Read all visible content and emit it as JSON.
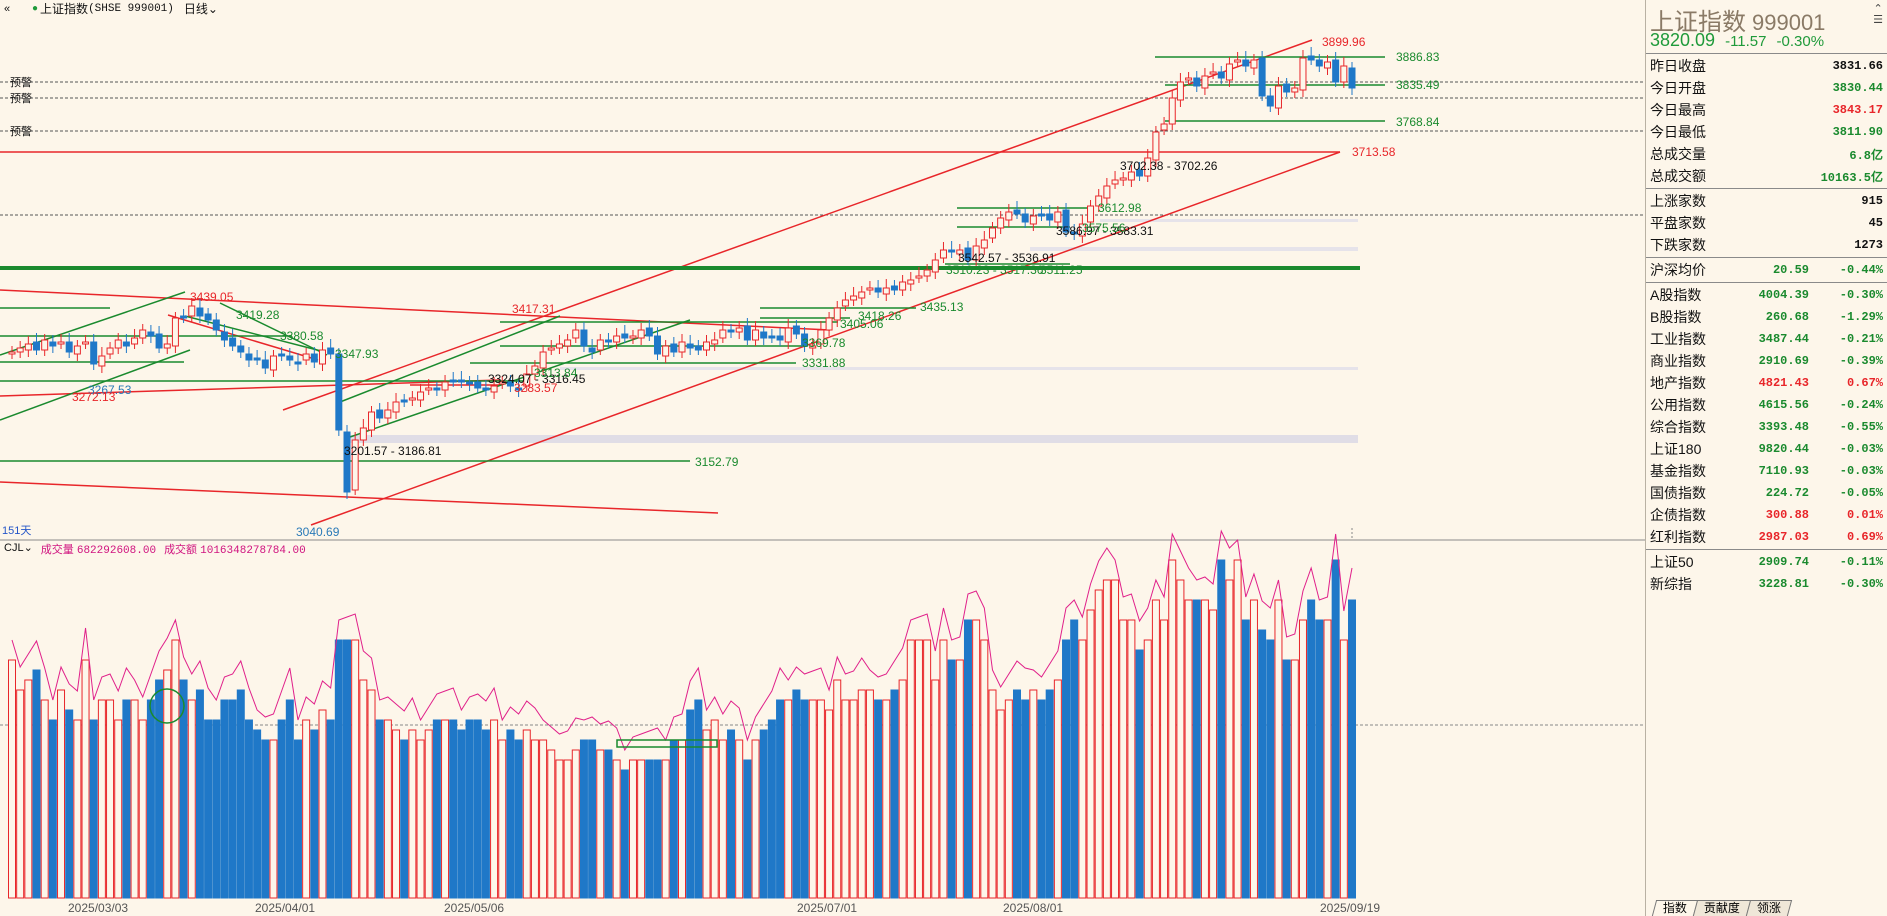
{
  "topbar": {
    "index_name": "上证指数",
    "symbol": "(SHSE 999001)",
    "period": "日线",
    "back_icon": "double-chevron-left-icon"
  },
  "alerts": {
    "label": "预警"
  },
  "days_label": "151天",
  "volume": {
    "indicator": "CJL",
    "vol_label": "成交量",
    "vol_value": "682292608.00",
    "amount_label": "成交额",
    "amount_value": "1016348278784.00"
  },
  "x_dates": [
    "2025/03/03",
    "2025/04/01",
    "2025/05/06",
    "2025/07/01",
    "2025/08/01",
    "2025/09/19"
  ],
  "price_labels": {
    "hi": "3899.96",
    "r1": "3886.83",
    "r2": "3835.49",
    "r3": "3768.84",
    "r4": "3713.58",
    "seg1": "3702.38 - 3702.26",
    "r5": "3612.98",
    "seg2": "3586.97 - 3583.31",
    "seg2b": "3575.56",
    "seg3": "3542.57 - 3536.91",
    "seg3b": "3510.23 - 3517.36",
    "seg3c": "3511.25",
    "r6": "3435.13",
    "r7": "3418.26",
    "r8": "3405.06",
    "r9": "3369.78",
    "r10": "3331.88",
    "l1": "3439.05",
    "l2": "3419.28",
    "l3": "3380.58",
    "l4": "3347.93",
    "l5": "3267.53",
    "l6": "3272.13",
    "m1": "3417.31",
    "m2": "3324.07 - 3316.45",
    "m3": "3313.84",
    "m4": "3283.57",
    "seg4": "3201.57 - 3186.81",
    "s1": "3152.79",
    "low": "3040.69"
  },
  "panel": {
    "title": "上证指数",
    "code": "999001",
    "last": "3820.09",
    "change": "-11.57",
    "pct": "-0.30%",
    "icons": [
      "double-chevron-up-icon",
      "list-icon"
    ],
    "quote": [
      {
        "label": "昨日收盘",
        "value": "3831.66",
        "cls": "flat"
      },
      {
        "label": "今日开盘",
        "value": "3830.44",
        "cls": "dn"
      },
      {
        "label": "今日最高",
        "value": "3843.17",
        "cls": "up"
      },
      {
        "label": "今日最低",
        "value": "3811.90",
        "cls": "dn"
      },
      {
        "label": "总成交量",
        "value": "6.8亿",
        "cls": "dn"
      },
      {
        "label": "总成交额",
        "value": "10163.5亿",
        "cls": "dn"
      }
    ],
    "breadth": [
      {
        "label": "上涨家数",
        "value": "915"
      },
      {
        "label": "平盘家数",
        "value": "45"
      },
      {
        "label": "下跌家数",
        "value": "1273"
      }
    ],
    "avg": {
      "label": "沪深均价",
      "price": "20.59",
      "pct": "-0.44%"
    },
    "indices": [
      {
        "label": "A股指数",
        "price": "4004.39",
        "pct": "-0.30%",
        "cls": "dn"
      },
      {
        "label": "B股指数",
        "price": "260.68",
        "pct": "-1.29%",
        "cls": "dn"
      },
      {
        "label": "工业指数",
        "price": "3487.44",
        "pct": "-0.21%",
        "cls": "dn"
      },
      {
        "label": "商业指数",
        "price": "2910.69",
        "pct": "-0.39%",
        "cls": "dn"
      },
      {
        "label": "地产指数",
        "price": "4821.43",
        "pct": "0.67%",
        "cls": "up"
      },
      {
        "label": "公用指数",
        "price": "4615.56",
        "pct": "-0.24%",
        "cls": "dn"
      },
      {
        "label": "综合指数",
        "price": "3393.48",
        "pct": "-0.55%",
        "cls": "dn"
      },
      {
        "label": "上证180",
        "price": "9820.44",
        "pct": "-0.03%",
        "cls": "dn"
      },
      {
        "label": "基金指数",
        "price": "7110.93",
        "pct": "-0.03%",
        "cls": "dn"
      },
      {
        "label": "国债指数",
        "price": "224.72",
        "pct": "-0.05%",
        "cls": "dn"
      },
      {
        "label": "企债指数",
        "price": "300.88",
        "pct": "0.01%",
        "cls": "up"
      },
      {
        "label": "红利指数",
        "price": "2987.03",
        "pct": "0.69%",
        "cls": "up"
      }
    ],
    "indices2": [
      {
        "label": "上证50",
        "price": "2909.74",
        "pct": "-0.11%",
        "cls": "dn"
      },
      {
        "label": "新综指",
        "price": "3228.81",
        "pct": "-0.30%",
        "cls": "dn"
      }
    ],
    "tabs": [
      "指数",
      "贡献度",
      "领涨"
    ]
  }
}
